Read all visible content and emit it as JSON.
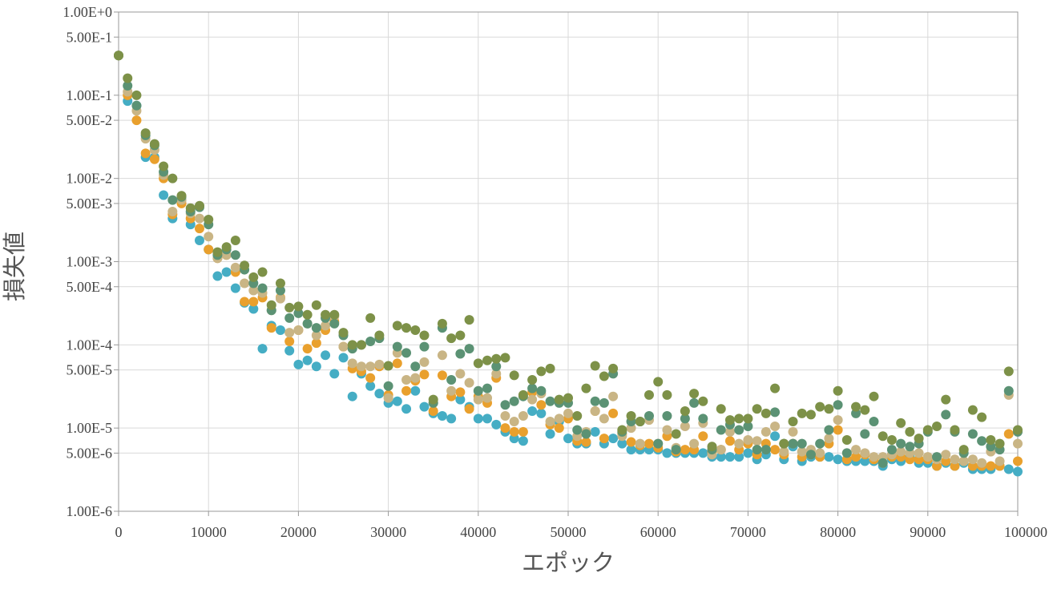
{
  "chart_data": {
    "type": "scatter",
    "title": "",
    "xlabel": "エポック",
    "ylabel": "損失値",
    "xlim": [
      0,
      100000
    ],
    "ylim": [
      1e-06,
      1
    ],
    "y_scale": "log",
    "grid": true,
    "x_ticks": [
      0,
      10000,
      20000,
      30000,
      40000,
      50000,
      60000,
      70000,
      80000,
      90000,
      100000
    ],
    "x_tick_labels": [
      "0",
      "10000",
      "20000",
      "30000",
      "40000",
      "50000",
      "60000",
      "70000",
      "80000",
      "90000",
      "100000"
    ],
    "y_ticks": [
      1e-06,
      5e-06,
      1e-05,
      5e-05,
      0.0001,
      0.0005,
      0.001,
      0.005,
      0.01,
      0.05,
      0.1,
      0.5,
      1
    ],
    "y_tick_labels": [
      "1.00E-6",
      "5.00E-6",
      "1.00E-5",
      "5.00E-5",
      "1.00E-4",
      "5.00E-4",
      "1.00E-3",
      "5.00E-3",
      "1.00E-2",
      "5.00E-2",
      "1.00E-1",
      "5.00E-1",
      "1.00E+0"
    ],
    "x": [
      0,
      1000,
      2000,
      3000,
      4000,
      5000,
      6000,
      7000,
      8000,
      9000,
      10000,
      11000,
      12000,
      13000,
      14000,
      15000,
      16000,
      17000,
      18000,
      19000,
      20000,
      21000,
      22000,
      23000,
      24000,
      25000,
      26000,
      27000,
      28000,
      29000,
      30000,
      31000,
      32000,
      33000,
      34000,
      35000,
      36000,
      37000,
      38000,
      39000,
      40000,
      41000,
      42000,
      43000,
      44000,
      45000,
      46000,
      47000,
      48000,
      49000,
      50000,
      51000,
      52000,
      53000,
      54000,
      55000,
      56000,
      57000,
      58000,
      59000,
      60000,
      61000,
      62000,
      63000,
      64000,
      65000,
      66000,
      67000,
      68000,
      69000,
      70000,
      71000,
      72000,
      73000,
      74000,
      75000,
      76000,
      77000,
      78000,
      79000,
      80000,
      81000,
      82000,
      83000,
      84000,
      85000,
      86000,
      87000,
      88000,
      89000,
      90000,
      91000,
      92000,
      93000,
      94000,
      95000,
      96000,
      97000,
      98000,
      99000,
      100000
    ],
    "series": [
      {
        "color": "#45adc4",
        "values": [
          0.3,
          0.085,
          0.075,
          0.018,
          0.018,
          0.0063,
          0.0033,
          0.0055,
          0.0028,
          0.0018,
          0.0014,
          0.00067,
          0.00075,
          0.00048,
          0.00032,
          0.00027,
          9e-05,
          0.00017,
          0.00015,
          8.5e-05,
          5.8e-05,
          6.5e-05,
          5.5e-05,
          7.5e-05,
          4.5e-05,
          7e-05,
          2.4e-05,
          4.5e-05,
          3.2e-05,
          2.6e-05,
          2e-05,
          2.1e-05,
          1.7e-05,
          2.8e-05,
          1.8e-05,
          1.5e-05,
          1.4e-05,
          1.3e-05,
          2.2e-05,
          1.8e-05,
          1.3e-05,
          1.3e-05,
          1.1e-05,
          9e-06,
          7.5e-06,
          7e-06,
          1.6e-05,
          1.5e-05,
          8.5e-06,
          1.2e-05,
          7.5e-06,
          6.5e-06,
          6.5e-06,
          9e-06,
          6.5e-06,
          7.5e-06,
          6.5e-06,
          5.5e-06,
          5.5e-06,
          5.5e-06,
          5.5e-06,
          5e-06,
          5e-06,
          5e-06,
          5e-06,
          5e-06,
          4.5e-06,
          4.5e-06,
          4.5e-06,
          4.5e-06,
          5e-06,
          4.2e-06,
          4.8e-06,
          8e-06,
          4.2e-06,
          6e-06,
          4e-06,
          4.5e-06,
          4.5e-06,
          4.5e-06,
          4.2e-06,
          4e-06,
          4e-06,
          4e-06,
          4e-06,
          3.5e-06,
          4.2e-06,
          4e-06,
          4.5e-06,
          3.8e-06,
          3.8e-06,
          3.5e-06,
          3.8e-06,
          3.5e-06,
          3.8e-06,
          3.2e-06,
          3.2e-06,
          3.2e-06,
          3.5e-06,
          3.2e-06,
          3e-06
        ]
      },
      {
        "color": "#e9a02d",
        "values": [
          0.3,
          0.1,
          0.05,
          0.02,
          0.017,
          0.01,
          0.0037,
          0.005,
          0.0033,
          0.0025,
          0.0014,
          0.0011,
          0.0012,
          0.00075,
          0.00033,
          0.00033,
          0.00037,
          0.00016,
          0.00037,
          0.00011,
          0.00015,
          9e-05,
          0.000105,
          0.00015,
          0.00019,
          9.5e-05,
          5.2e-05,
          4.8e-05,
          4e-05,
          5.5e-05,
          2.5e-05,
          6e-05,
          2.8e-05,
          3.7e-05,
          4.4e-05,
          1.6e-05,
          4.3e-05,
          2.4e-05,
          2.7e-05,
          1.7e-05,
          2.4e-05,
          2e-05,
          4e-05,
          1e-05,
          9e-06,
          9e-06,
          2.7e-05,
          1.9e-05,
          1.1e-05,
          1e-05,
          1.3e-05,
          7e-06,
          6.8e-06,
          1.6e-05,
          7.5e-06,
          1.5e-05,
          8.5e-06,
          6.8e-06,
          6.2e-06,
          6.5e-06,
          5.8e-06,
          8e-06,
          5.2e-06,
          5.5e-06,
          5.5e-06,
          8e-06,
          5.2e-06,
          5.5e-06,
          7e-06,
          5.5e-06,
          6.5e-06,
          4.8e-06,
          6.5e-06,
          5.5e-06,
          4.8e-06,
          6.5e-06,
          4.5e-06,
          4.8e-06,
          4.5e-06,
          6.5e-06,
          9.5e-06,
          4.2e-06,
          4.5e-06,
          4.8e-06,
          4.2e-06,
          3.8e-06,
          4.5e-06,
          4.5e-06,
          4.2e-06,
          4.2e-06,
          4.2e-06,
          3.5e-06,
          4e-06,
          3.5e-06,
          4e-06,
          3.5e-06,
          3.5e-06,
          3.5e-06,
          3.5e-06,
          8.5e-06,
          4e-06
        ]
      },
      {
        "color": "#c9b585",
        "values": [
          0.3,
          0.11,
          0.065,
          0.03,
          0.022,
          0.011,
          0.004,
          0.0055,
          0.0038,
          0.0033,
          0.002,
          0.0011,
          0.0012,
          0.00085,
          0.00055,
          0.00045,
          0.00042,
          0.00026,
          0.00036,
          0.00014,
          0.00015,
          0.00018,
          0.00013,
          0.00017,
          0.00022,
          9.5e-05,
          6e-05,
          5.5e-05,
          5.5e-05,
          5.8e-05,
          2.3e-05,
          8e-05,
          3.8e-05,
          4e-05,
          6.2e-05,
          2e-05,
          7.5e-05,
          2.8e-05,
          4.5e-05,
          3.5e-05,
          2.2e-05,
          2.3e-05,
          4.5e-05,
          1.4e-05,
          1.2e-05,
          1.4e-05,
          2.2e-05,
          2.6e-05,
          1.2e-05,
          1.3e-05,
          1.5e-05,
          8e-06,
          9e-06,
          1.6e-05,
          1.3e-05,
          2.4e-05,
          8e-06,
          1e-05,
          6.5e-06,
          1.25e-05,
          6.5e-06,
          9.5e-06,
          5.8e-06,
          1.05e-05,
          6.5e-06,
          1.15e-05,
          4.8e-06,
          5.5e-06,
          9e-06,
          6.5e-06,
          7.2e-06,
          7e-06,
          9e-06,
          1.05e-05,
          5.2e-06,
          9e-06,
          5.2e-06,
          5.5e-06,
          5e-06,
          7.5e-06,
          1.25e-05,
          5e-06,
          5.5e-06,
          5e-06,
          4.5e-06,
          4.5e-06,
          4.8e-06,
          5.2e-06,
          5e-06,
          5e-06,
          4.5e-06,
          4.2e-06,
          4.8e-06,
          4.2e-06,
          4e-06,
          4.2e-06,
          3.8e-06,
          5.2e-06,
          4e-06,
          2.5e-05,
          6.5e-06
        ]
      },
      {
        "color": "#5b9274",
        "values": [
          0.3,
          0.13,
          0.075,
          0.033,
          0.025,
          0.012,
          0.0055,
          0.006,
          0.004,
          0.0045,
          0.0028,
          0.0012,
          0.0014,
          0.0012,
          0.0008,
          0.00055,
          0.00048,
          0.00026,
          0.00045,
          0.00021,
          0.00024,
          0.00018,
          0.00016,
          0.00021,
          0.00018,
          0.00013,
          9e-05,
          0.0001,
          0.00011,
          0.00012,
          3.2e-05,
          9.5e-05,
          8e-05,
          5.5e-05,
          9.5e-05,
          2e-05,
          0.00016,
          3.8e-05,
          7.8e-05,
          9e-05,
          2.8e-05,
          3e-05,
          5.5e-05,
          1.9e-05,
          2.1e-05,
          2.4e-05,
          3e-05,
          2.8e-05,
          2.1e-05,
          2e-05,
          2e-05,
          9.5e-06,
          8.5e-06,
          2.1e-05,
          2e-05,
          4.5e-05,
          9e-06,
          1.2e-05,
          1.2e-05,
          1.4e-05,
          6.5e-06,
          1.4e-05,
          5.5e-06,
          1.3e-05,
          2e-05,
          1.3e-05,
          5.5e-06,
          9.5e-06,
          1.1e-05,
          9.5e-06,
          1.05e-05,
          5.5e-06,
          5.5e-06,
          1.55e-05,
          6.5e-06,
          6.5e-06,
          6.5e-06,
          4.8e-06,
          6.5e-06,
          9.5e-06,
          1.9e-05,
          5e-06,
          1.5e-05,
          8.5e-06,
          1.2e-05,
          3.8e-06,
          5.5e-06,
          6.5e-06,
          6e-06,
          6.5e-06,
          9e-06,
          4.5e-06,
          1.45e-05,
          9e-06,
          5e-06,
          8.5e-06,
          7e-06,
          6e-06,
          5.5e-06,
          2.8e-05,
          9e-06
        ]
      },
      {
        "color": "#7d9148",
        "values": [
          0.3,
          0.16,
          0.1,
          0.035,
          0.026,
          0.014,
          0.01,
          0.0062,
          0.0044,
          0.0047,
          0.0032,
          0.0013,
          0.0015,
          0.0018,
          0.0009,
          0.00065,
          0.00075,
          0.0003,
          0.00055,
          0.00028,
          0.00029,
          0.00023,
          0.0003,
          0.00023,
          0.00023,
          0.00014,
          0.0001,
          0.0001,
          0.00021,
          0.00013,
          5.6e-05,
          0.00017,
          0.00016,
          0.00015,
          0.00013,
          2.2e-05,
          0.00018,
          0.00012,
          0.00013,
          0.0002,
          6e-05,
          6.5e-05,
          6.8e-05,
          7e-05,
          4.3e-05,
          2.5e-05,
          3.8e-05,
          4.8e-05,
          5.2e-05,
          2.2e-05,
          2.3e-05,
          1.4e-05,
          3e-05,
          5.6e-05,
          4.2e-05,
          5.2e-05,
          9.5e-06,
          1.4e-05,
          1.2e-05,
          2.5e-05,
          3.6e-05,
          2.5e-05,
          8.5e-06,
          1.6e-05,
          2.6e-05,
          2.1e-05,
          6e-06,
          1.7e-05,
          1.25e-05,
          1.3e-05,
          1.3e-05,
          1.7e-05,
          1.5e-05,
          3e-05,
          6.5e-06,
          1.2e-05,
          1.5e-05,
          1.45e-05,
          1.8e-05,
          1.7e-05,
          2.8e-05,
          7.2e-06,
          1.8e-05,
          1.65e-05,
          2.4e-05,
          8e-06,
          7.2e-06,
          1.15e-05,
          9e-06,
          7.5e-06,
          9.5e-06,
          1.05e-05,
          2.2e-05,
          9.5e-06,
          5.5e-06,
          1.65e-05,
          1.35e-05,
          7.2e-06,
          6.5e-06,
          4.8e-05,
          9.5e-06
        ]
      }
    ]
  }
}
